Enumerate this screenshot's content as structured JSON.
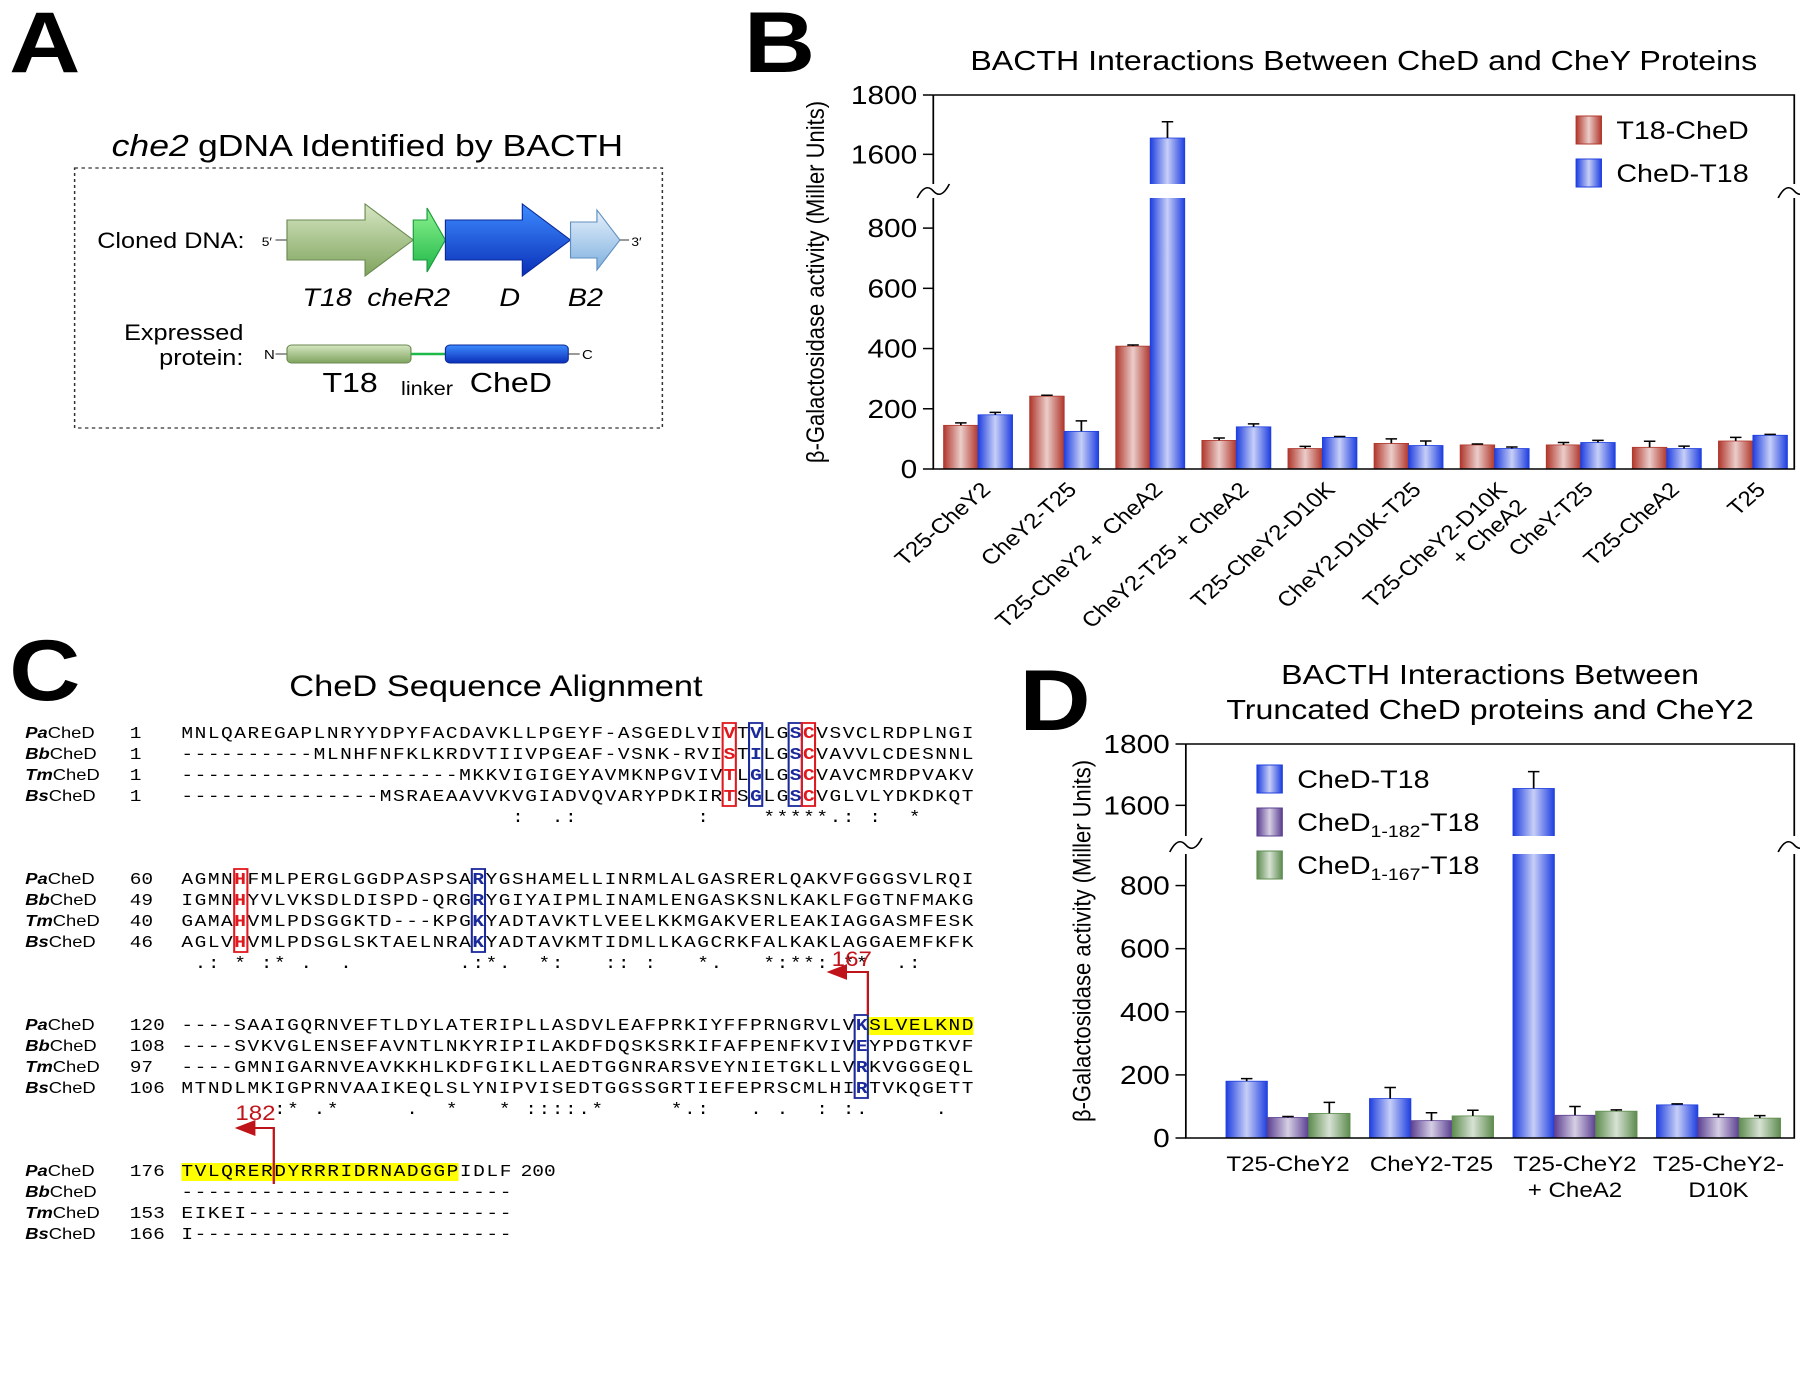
{
  "panel_labels": [
    "A",
    "B",
    "C",
    "D"
  ],
  "diagram": {
    "title_italic": "che2",
    "title": "gDNA Identified by BACTH",
    "cloned_label": "Cloned DNA:",
    "ends": [
      "5′",
      "3′"
    ],
    "genes": [
      "T18",
      "cheR2",
      "D",
      "B2"
    ],
    "expressed_label": [
      "Expressed",
      "protein:"
    ],
    "protein_ends": [
      "N",
      "C"
    ],
    "domains": [
      "T18",
      "CheD"
    ],
    "linker": "linker"
  },
  "chart_data": [
    {
      "type": "bar",
      "title": "BACTH Interactions Between CheD and CheY Proteins",
      "y_label": "β-Galactosidase activity (Miller Units)",
      "categories": [
        "T25-CheY2",
        "CheY2-T25",
        "T25-CheY2 + CheA2",
        "CheY2-T25 + CheA2",
        "T25-CheY2-D10K",
        "CheY2-D10K-T25",
        "T25-CheY2-D10K\n+ CheA2",
        "CheY-T25",
        "T25-CheA2",
        "T25"
      ],
      "series": [
        {
          "name": "T18-CheD",
          "color": "#b0372c",
          "values": [
            145,
            242,
            408,
            95,
            68,
            85,
            80,
            80,
            72,
            93
          ],
          "errors": [
            8,
            3,
            4,
            8,
            7,
            15,
            3,
            8,
            20,
            12
          ]
        },
        {
          "name": "CheD-T18",
          "color": "#1f3fe0",
          "values": [
            180,
            125,
            1655,
            140,
            105,
            78,
            68,
            88,
            68,
            112
          ],
          "errors": [
            8,
            35,
            55,
            10,
            3,
            15,
            5,
            7,
            8,
            3
          ]
        }
      ],
      "ylim": [
        0,
        1800
      ],
      "y_break": [
        900,
        1500
      ],
      "yticks": [
        0,
        200,
        400,
        600,
        800,
        1600,
        1800
      ],
      "legend": "upper right"
    },
    {
      "type": "bar",
      "title": "BACTH Interactions Between\nTruncated CheD proteins and CheY2",
      "y_label": "β-Galactosidase activity (Miller Units)",
      "categories": [
        "T25-CheY2",
        "CheY2-T25",
        "T25-CheY2\n+ CheA2",
        "T25-CheY2-\nD10K"
      ],
      "series": [
        {
          "name": "CheD-T18",
          "color": "#1f3fe0",
          "values": [
            180,
            125,
            1655,
            105
          ],
          "errors": [
            8,
            35,
            55,
            3
          ]
        },
        {
          "name": "CheD1-182-T18",
          "color": "#5b3f91",
          "values": [
            65,
            55,
            72,
            65
          ],
          "errors": [
            3,
            25,
            28,
            10
          ]
        },
        {
          "name": "CheD1-167-T18",
          "color": "#5e8c4f",
          "values": [
            78,
            70,
            85,
            63
          ],
          "errors": [
            35,
            18,
            4,
            8
          ]
        }
      ],
      "ylim": [
        0,
        1800
      ],
      "y_break": [
        900,
        1500
      ],
      "yticks": [
        0,
        200,
        400,
        600,
        800,
        1600,
        1800
      ],
      "legend": "upper left"
    }
  ],
  "alignment": {
    "title": "CheD Sequence Alignment",
    "names": [
      {
        "species": "Pa",
        "protein": "CheD"
      },
      {
        "species": "Bb",
        "protein": "CheD"
      },
      {
        "species": "Tm",
        "protein": "CheD"
      },
      {
        "species": "Bs",
        "protein": "CheD"
      }
    ],
    "blocks": [
      {
        "rows": [
          {
            "start": 1,
            "seq": "MNLQAREGAPLNRYYDPYFACDAVKLLPGEYF-ASGEDLVIVTVLGSCVSVCLRDPLNGI"
          },
          {
            "start": 1,
            "seq": "----------MLNHFNFKLKRDVTIIVPGEAF-VSNK-RVISTILGSCVAVVLCDESNNL"
          },
          {
            "start": 1,
            "seq": "---------------------MKKVIGIGEYAVMKNPGVIVTLGLGSCVAVCMRDPVAKV"
          },
          {
            "start": 1,
            "seq": "---------------MSRAEAAVVKVGIADVQVARYPDKIRTSGLGSCVGLVLYDKDKQT"
          }
        ],
        "consensus": "                         :  .:         :    *****.: :  *"
      },
      {
        "rows": [
          {
            "start": 60,
            "seq": "AGMNHFMLPERGLGGDPASPSARYGSHAMELLINRMLALGASRERLQAKVFGGGSVLRQI"
          },
          {
            "start": 49,
            "seq": "IGMNHYVLVKSDLDISPD-QRGRYGIYAIPMLINAMLENGASKSNLKAKLFGGTNFMAKG"
          },
          {
            "start": 40,
            "seq": "GAMAHVMLPDSGGKTD---KPGKYADTAVKTLVEELKKMGAKVERLEAKIAGGASMFESK"
          },
          {
            "start": 46,
            "seq": "AGLVHVMLPDSGLSKTAELNRAKYADTAVKMTIDMLLKAGCRKFALKAKLAGGAEMFKFK"
          }
        ],
        "consensus": " .: * :* .  .        .:*.  *:   :: :   *.   *:**: **  .:"
      },
      {
        "rows": [
          {
            "start": 120,
            "seq": "----SAAIGQRNVEFTLDYLATERIPLLASDVLEAFPRKIYFFPRNGRVLVKSLVELKND"
          },
          {
            "start": 108,
            "seq": "----SVKVGLENSEFAVNTLNKYRIPILAKDFDQSKSRKIFAFPENFKVIVEYPDGTKVF"
          },
          {
            "start": 97,
            "seq": "----GMNIGARNVEAVKKHLKDFGIKLLAEDTGGNRARSVEYNIETGKLLVRKVGGGEQL"
          },
          {
            "start": 106,
            "seq": "MTNDLMKIGPRNVAAIKEQLSLYNIPVISEDTGGSSGRTIEFEPRSCMLHIRTVKQGETT"
          }
        ],
        "consensus": "       :* .*     .  *   * ::::.*     *.:   . .  : :.     ."
      },
      {
        "rows": [
          {
            "start": 176,
            "seq": "TVLQRERDYRRRIDRNADGGPIDLF",
            "end": 200
          },
          {
            "seq": "-------------------------"
          },
          {
            "start": 153,
            "seq": "EIKEI--------------------"
          },
          {
            "start": 166,
            "seq": "I------------------------"
          }
        ]
      }
    ],
    "markers": [
      167,
      182
    ]
  }
}
